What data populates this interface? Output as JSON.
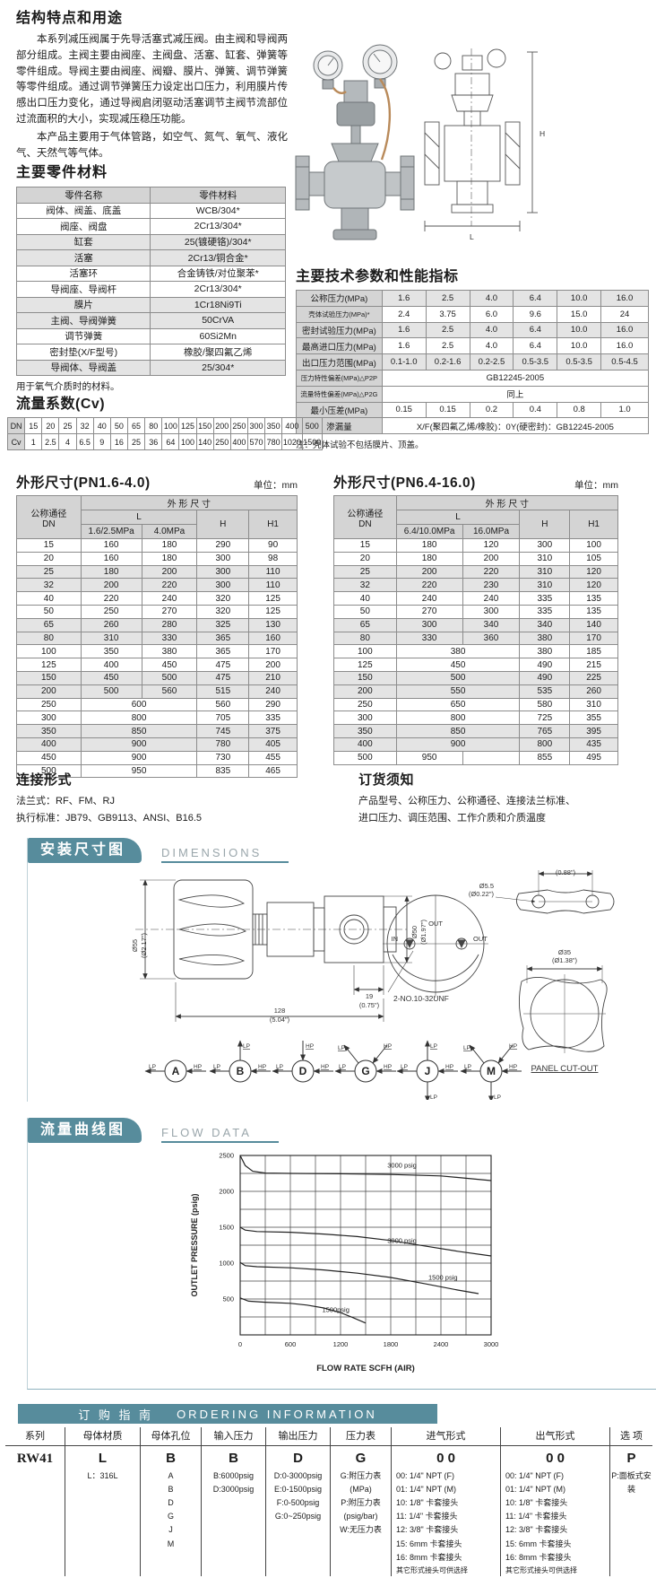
{
  "intro": {
    "title": "结构特点和用途",
    "p1": "本系列减压阀属于先导活塞式减压阀。由主阀和导阀两部分组成。主阀主要由阀座、主阀盘、活塞、缸套、弹簧等零件组成。导阀主要由阀座、阀瓣、膜片、弹簧、调节弹簧等零件组成。通过调节弹簧压力设定出口压力，利用膜片传感出口压力变化，通过导阀启闭驱动活塞调节主阀节流部位过流面积的大小，实现减压稳压功能。",
    "p2": "本产品主要用于气体管路，如空气、氮气、氧气、液化气、天然气等气体。"
  },
  "materials": {
    "title": "主要零件材料",
    "headers": [
      "零件名称",
      "零件材料"
    ],
    "rows": [
      [
        "阀体、阀盖、底盖",
        "WCB/304*"
      ],
      [
        "阀座、阀盘",
        "2Cr13/304*"
      ],
      [
        "缸套",
        "25(镀硬铬)/304*"
      ],
      [
        "活塞",
        "2Cr13/铜合金*"
      ],
      [
        "活塞环",
        "合金铸铁/对位聚苯*"
      ],
      [
        "导阀座、导阀杆",
        "2Cr13/304*"
      ],
      [
        "膜片",
        "1Cr18Ni9Ti"
      ],
      [
        "主阀、导阀弹簧",
        "50CrVA"
      ],
      [
        "调节弹簧",
        "60Si2Mn"
      ],
      [
        "密封垫(X/F型号)",
        "橡胶/聚四氟乙烯"
      ],
      [
        "导阀体、导阀盖",
        "25/304*"
      ]
    ],
    "note": "用于氧气介质时的材料。"
  },
  "tech": {
    "title": "主要技术参数和性能指标",
    "rows": [
      {
        "label": "公称压力(MPa)",
        "values": [
          "1.6",
          "2.5",
          "4.0",
          "6.4",
          "10.0",
          "16.0"
        ]
      },
      {
        "label": "壳体试验压力(MPa)*",
        "values": [
          "2.4",
          "3.75",
          "6.0",
          "9.6",
          "15.0",
          "24"
        ]
      },
      {
        "label": "密封试验压力(MPa)",
        "values": [
          "1.6",
          "2.5",
          "4.0",
          "6.4",
          "10.0",
          "16.0"
        ]
      },
      {
        "label": "最高进口压力(MPa)",
        "values": [
          "1.6",
          "2.5",
          "4.0",
          "6.4",
          "10.0",
          "16.0"
        ]
      },
      {
        "label": "出口压力范围(MPa)",
        "values": [
          "0.1-1.0",
          "0.2-1.6",
          "0.2-2.5",
          "0.5-3.5",
          "0.5-3.5",
          "0.5-4.5"
        ]
      },
      {
        "label": "压力特性偏差(MPa)△P2P",
        "span": "GB12245-2005"
      },
      {
        "label": "流量特性偏差(MPa)△P2G",
        "span": "同上"
      },
      {
        "label": "最小压差(MPa)",
        "values": [
          "0.15",
          "0.15",
          "0.2",
          "0.4",
          "0.8",
          "1.0"
        ]
      },
      {
        "label": "渗漏量",
        "span": "X/F(聚四氟乙烯/橡胶)：0Y(硬密封)：GB12245-2005"
      }
    ],
    "note": "注：壳体试验不包括膜片、顶盖。"
  },
  "cv": {
    "title": "流量系数(Cv)",
    "dn_label": "DN",
    "cv_label": "Cv",
    "dn": [
      "15",
      "20",
      "25",
      "32",
      "40",
      "50",
      "65",
      "80",
      "100",
      "125",
      "150",
      "200",
      "250",
      "300",
      "350",
      "400",
      "500"
    ],
    "cv": [
      "1",
      "2.5",
      "4",
      "6.5",
      "9",
      "16",
      "25",
      "36",
      "64",
      "100",
      "140",
      "250",
      "400",
      "570",
      "780",
      "1020",
      "1500"
    ]
  },
  "dims_a": {
    "title": "外形尺寸(PN1.6-4.0)",
    "unit": "单位：mm",
    "h_dn1": "公称通径",
    "h_dn2": "DN",
    "h_group": "外 形 尺 寸",
    "h_l": "L",
    "h_l1": "1.6/2.5MPa",
    "h_l2": "4.0MPa",
    "h_h": "H",
    "h_h1": "H1",
    "rows": [
      [
        "15",
        "160",
        "180",
        "290",
        "90"
      ],
      [
        "20",
        "160",
        "180",
        "300",
        "98"
      ],
      [
        "25",
        "180",
        "200",
        "300",
        "110"
      ],
      [
        "32",
        "200",
        "220",
        "300",
        "110"
      ],
      [
        "40",
        "220",
        "240",
        "320",
        "125"
      ],
      [
        "50",
        "250",
        "270",
        "320",
        "125"
      ],
      [
        "65",
        "260",
        "280",
        "325",
        "130"
      ],
      [
        "80",
        "310",
        "330",
        "365",
        "160"
      ],
      [
        "100",
        "350",
        "380",
        "365",
        "170"
      ],
      [
        "125",
        "400",
        "450",
        "475",
        "200"
      ],
      [
        "150",
        "450",
        "500",
        "475",
        "210"
      ],
      [
        "200",
        "500",
        "560",
        "515",
        "240"
      ],
      [
        "250",
        "600",
        "560",
        "290"
      ],
      [
        "300",
        "800",
        "705",
        "335"
      ],
      [
        "350",
        "850",
        "745",
        "375"
      ],
      [
        "400",
        "900",
        "780",
        "405"
      ],
      [
        "450",
        "900",
        "730",
        "455"
      ],
      [
        "500",
        "950",
        "835",
        "465"
      ]
    ]
  },
  "dims_b": {
    "title": "外形尺寸(PN6.4-16.0)",
    "unit": "单位：mm",
    "h_dn1": "公称通径",
    "h_dn2": "DN",
    "h_group": "外 形 尺 寸",
    "h_l": "L",
    "h_l1": "6.4/10.0MPa",
    "h_l2": "16.0MPa",
    "h_h": "H",
    "h_h1": "H1",
    "rows": [
      [
        "15",
        "180",
        "120",
        "300",
        "100"
      ],
      [
        "20",
        "180",
        "200",
        "310",
        "105"
      ],
      [
        "25",
        "200",
        "220",
        "310",
        "120"
      ],
      [
        "32",
        "220",
        "230",
        "310",
        "120"
      ],
      [
        "40",
        "240",
        "240",
        "335",
        "135"
      ],
      [
        "50",
        "270",
        "300",
        "335",
        "135"
      ],
      [
        "65",
        "300",
        "340",
        "340",
        "140"
      ],
      [
        "80",
        "330",
        "360",
        "380",
        "170"
      ],
      [
        "100",
        "380",
        "380",
        "185"
      ],
      [
        "125",
        "450",
        "490",
        "215"
      ],
      [
        "150",
        "500",
        "490",
        "225"
      ],
      [
        "200",
        "550",
        "535",
        "260"
      ],
      [
        "250",
        "650",
        "580",
        "310"
      ],
      [
        "300",
        "800",
        "725",
        "355"
      ],
      [
        "350",
        "850",
        "765",
        "395"
      ],
      [
        "400",
        "900",
        "800",
        "435"
      ],
      [
        "500",
        "950",
        "",
        "855",
        "495"
      ]
    ]
  },
  "connection": {
    "title": "连接形式",
    "line1": "法兰式：RF、FM、RJ",
    "line2": "执行标准：JB79、GB9113、ANSI、B16.5"
  },
  "order_note": {
    "title": "订货须知",
    "line1": "产品型号、公称压力、公称通径、连接法兰标准、",
    "line2": "进口压力、调压范围、工作介质和介质温度"
  },
  "dim_section": {
    "banner": "安装尺寸图",
    "banner_en": "DIMENSIONS",
    "labels": {
      "d55": "Ø55",
      "d55in": "(Ø2.17\")",
      "d50": "Ø50",
      "d50in": "(Ø1.97\")",
      "w19": "19",
      "w19in": "(0.75\")",
      "w128": "128",
      "w128in": "(5.04\")",
      "w222": "22.2",
      "w222in": "(0.88\")",
      "d55b": "Ø5.5",
      "d55bin": "(Ø0.22\")",
      "d35": "Ø35",
      "d35in": "(Ø1.38\")",
      "unf": "2-NO.10-32UNF",
      "panel": "PANEL CUT-OUT",
      "out_top": "OUT",
      "in_l": "IN",
      "out_r": "OUT"
    },
    "ports": [
      {
        "letter": "A",
        "arrows": [
          "lp-left",
          "hp-right"
        ]
      },
      {
        "letter": "B",
        "arrows": [
          "lp-up",
          "lp-left",
          "hp-right"
        ]
      },
      {
        "letter": "D",
        "arrows": [
          "hp-top",
          "lp-left",
          "hp-right"
        ]
      },
      {
        "letter": "G",
        "arrows": [
          "lp-diag",
          "hp-diag",
          "lp-left",
          "hp-right"
        ]
      },
      {
        "letter": "J",
        "arrows": [
          "lp-up",
          "lp-left",
          "hp-right",
          "lp-down"
        ]
      },
      {
        "letter": "M",
        "arrows": [
          "lp-diag",
          "hp-diag",
          "lp-left",
          "hp-right",
          "lp-down"
        ]
      }
    ]
  },
  "flow_section": {
    "banner": "流量曲线图",
    "banner_en": "FLOW DATA"
  },
  "chart_data": {
    "type": "line",
    "title": "",
    "xlabel": "FLOW RATE SCFH (AIR)",
    "ylabel": "OUTLET PRESSURE (psig)",
    "xlim": [
      0,
      3000
    ],
    "ylim": [
      0,
      2500
    ],
    "xticks": [
      0,
      600,
      1200,
      1800,
      2400,
      3000
    ],
    "yticks": [
      500,
      1000,
      1500,
      2000,
      2500
    ],
    "grid": true,
    "legend_position": "inline-labels",
    "series": [
      {
        "name": "inlet 3000 psig, high set",
        "label": "3000 psig",
        "label_x": 1760,
        "label_y": 2330,
        "x": [
          0,
          60,
          150,
          300,
          600,
          1200,
          1800,
          2400,
          3000
        ],
        "y": [
          2500,
          2360,
          2280,
          2255,
          2250,
          2245,
          2235,
          2215,
          2150
        ]
      },
      {
        "name": "inlet 3000 psig, mid set",
        "label": "3000 psig",
        "label_x": 1760,
        "label_y": 1280,
        "x": [
          0,
          60,
          200,
          600,
          1000,
          1400,
          1800,
          2200,
          2600,
          3000
        ],
        "y": [
          1500,
          1460,
          1440,
          1430,
          1405,
          1370,
          1315,
          1240,
          1165,
          1100
        ]
      },
      {
        "name": "inlet 1500 psig, mid set",
        "label": "1500 psig",
        "label_x": 2250,
        "label_y": 770,
        "x": [
          0,
          60,
          200,
          600,
          1000,
          1400,
          1800,
          2200,
          2600,
          2850
        ],
        "y": [
          1010,
          965,
          950,
          935,
          905,
          860,
          800,
          715,
          625,
          575
        ]
      },
      {
        "name": "inlet 1500 psig, low set",
        "label": "1500psig",
        "label_x": 980,
        "label_y": 320,
        "x": [
          0,
          100,
          300,
          600,
          800,
          1000,
          1200,
          1350,
          1500
        ],
        "y": [
          515,
          470,
          455,
          440,
          415,
          375,
          310,
          240,
          165
        ]
      }
    ]
  },
  "ordering": {
    "banner_cn": "订 购 指 南",
    "banner_en": "ORDERING   INFORMATION",
    "columns": [
      {
        "header": "系列",
        "code": "RW41",
        "details": []
      },
      {
        "header": "母体材质",
        "code": "L",
        "details": [
          "L：316L"
        ]
      },
      {
        "header": "母体孔位",
        "code": "B",
        "details": [
          "A",
          "B",
          "D",
          "G",
          "J",
          "M"
        ]
      },
      {
        "header": "输入压力",
        "code": "B",
        "details": [
          "B:6000psig",
          "D:3000psig"
        ]
      },
      {
        "header": "输出压力",
        "code": "D",
        "details": [
          "D:0-3000psig",
          "E:0-1500psig",
          "F:0-500psig",
          "G:0~250psig"
        ]
      },
      {
        "header": "压力表",
        "code": "G",
        "details": [
          "G:附压力表",
          "(MPa)",
          "P:附压力表",
          "(psig/bar)",
          "W:无压力表"
        ]
      },
      {
        "header": "进气形式",
        "code": "0 0",
        "details": [
          "00: 1/4\" NPT (F)",
          "01: 1/4\" NPT (M)",
          "10: 1/8\" 卡套接头",
          "11: 1/4\" 卡套接头",
          "12: 3/8\" 卡套接头",
          "15: 6mm 卡套接头",
          "16: 8mm 卡套接头",
          "其它形式接头可供选择"
        ]
      },
      {
        "header": "出气形式",
        "code": "0 0",
        "details": [
          "00: 1/4\" NPT (F)",
          "01: 1/4\" NPT (M)",
          "10: 1/8\" 卡套接头",
          "11: 1/4\" 卡套接头",
          "12: 3/8\" 卡套接头",
          "15: 6mm 卡套接头",
          "16: 8mm 卡套接头",
          "其它形式接头可供选择"
        ]
      },
      {
        "header": "选 项",
        "code": "P",
        "details": [
          "P:面板式安装"
        ]
      }
    ]
  }
}
